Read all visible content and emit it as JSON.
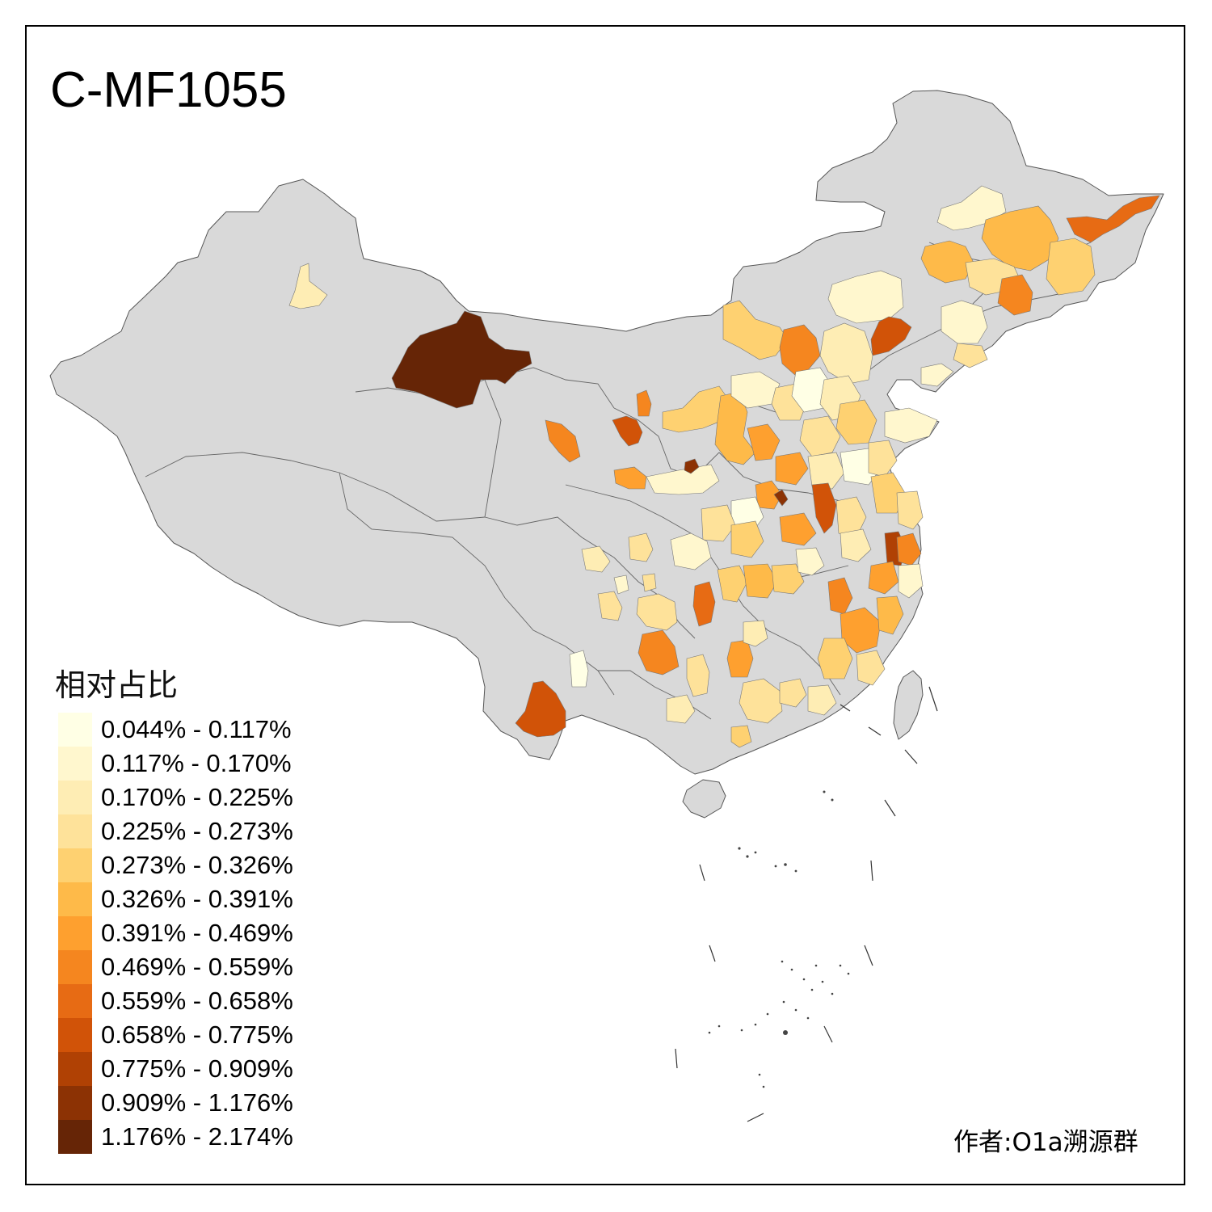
{
  "title": "C-MF1055",
  "legend": {
    "title": "相对占比",
    "bins": [
      {
        "label": "0.044% - 0.117%",
        "color": "#FFFFE5"
      },
      {
        "label": "0.117% - 0.170%",
        "color": "#FFF7CE"
      },
      {
        "label": "0.170% - 0.225%",
        "color": "#FEEDB4"
      },
      {
        "label": "0.225% - 0.273%",
        "color": "#FEE29A"
      },
      {
        "label": "0.273% - 0.326%",
        "color": "#FED171"
      },
      {
        "label": "0.326% - 0.391%",
        "color": "#FEBA49"
      },
      {
        "label": "0.391% - 0.469%",
        "color": "#FEA02F"
      },
      {
        "label": "0.469% - 0.559%",
        "color": "#F5861F"
      },
      {
        "label": "0.559% - 0.658%",
        "color": "#E76B14"
      },
      {
        "label": "0.658% - 0.775%",
        "color": "#D15308"
      },
      {
        "label": "0.775% - 0.909%",
        "color": "#B04104"
      },
      {
        "label": "0.909% - 1.176%",
        "color": "#8C3204"
      },
      {
        "label": "1.176% - 2.174%",
        "color": "#662506"
      }
    ]
  },
  "credit": "作者:O1a溯源群",
  "colors": {
    "no_data": "#D9D9D9",
    "border": "#555555",
    "frame": "#000000"
  }
}
